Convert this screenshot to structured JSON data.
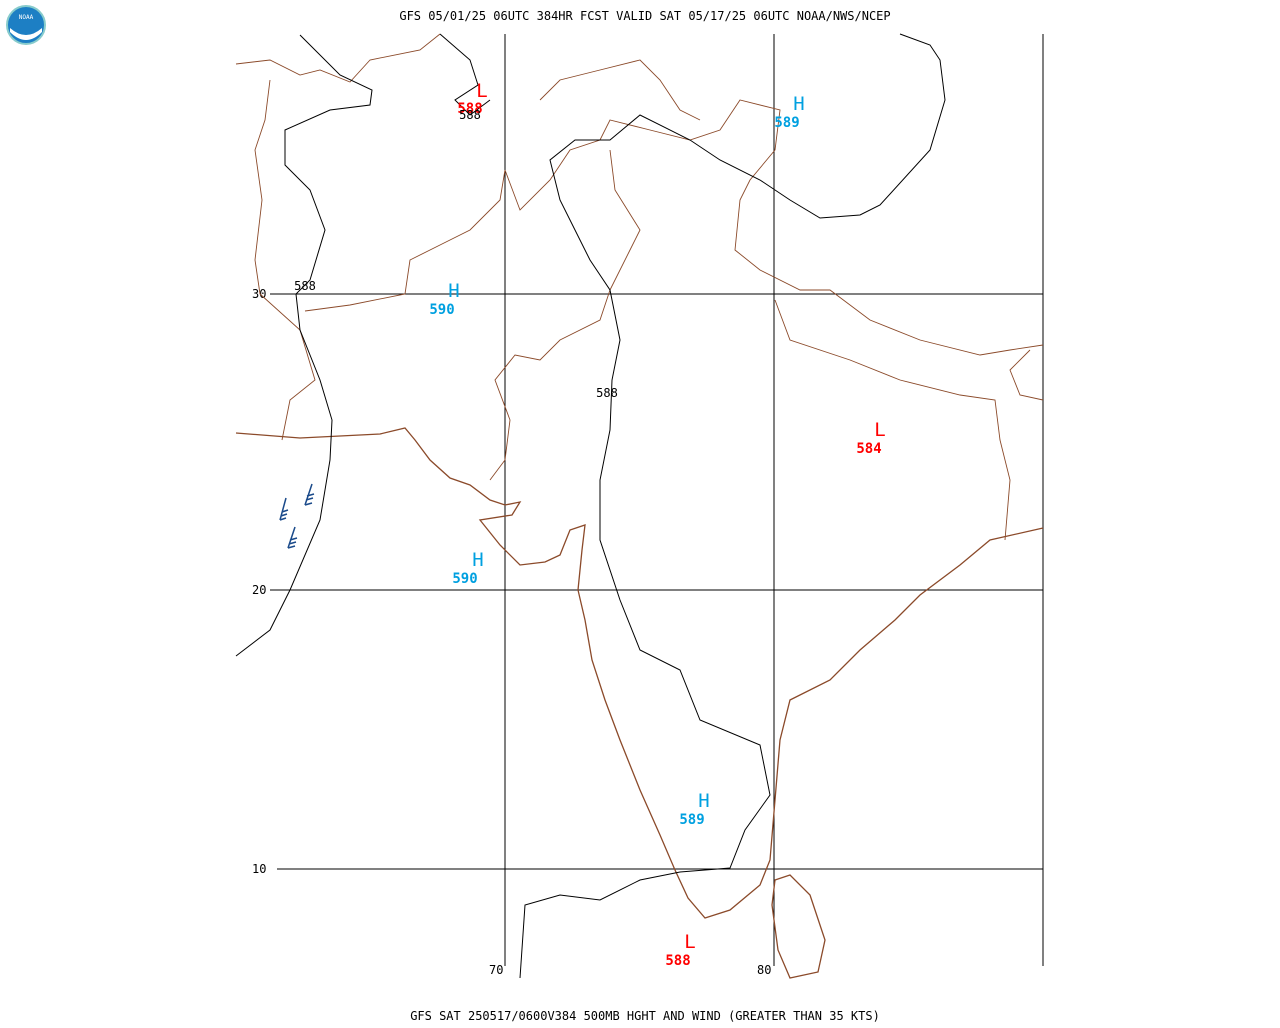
{
  "header": {
    "title": "GFS 05/01/25 06UTC 384HR FCST VALID SAT 05/17/25 06UTC NOAA/NWS/NCEP",
    "logo": "NOAA"
  },
  "footer": {
    "caption": "GFS SAT 250517/0600V384 500MB HGHT AND WIND (GREATER THAN 35 KTS)"
  },
  "grid": {
    "latitudes": [
      30,
      20,
      10
    ],
    "longitudes": [
      70,
      80
    ]
  },
  "centers": [
    {
      "symbol": "L",
      "value": 588
    },
    {
      "symbol": "H",
      "value": 589
    },
    {
      "symbol": "H",
      "value": 590
    },
    {
      "symbol": "L",
      "value": 584
    },
    {
      "symbol": "H",
      "value": 590
    },
    {
      "symbol": "H",
      "value": 589
    },
    {
      "symbol": "L",
      "value": 588
    }
  ],
  "contour_labels": [
    588,
    588,
    588
  ]
}
